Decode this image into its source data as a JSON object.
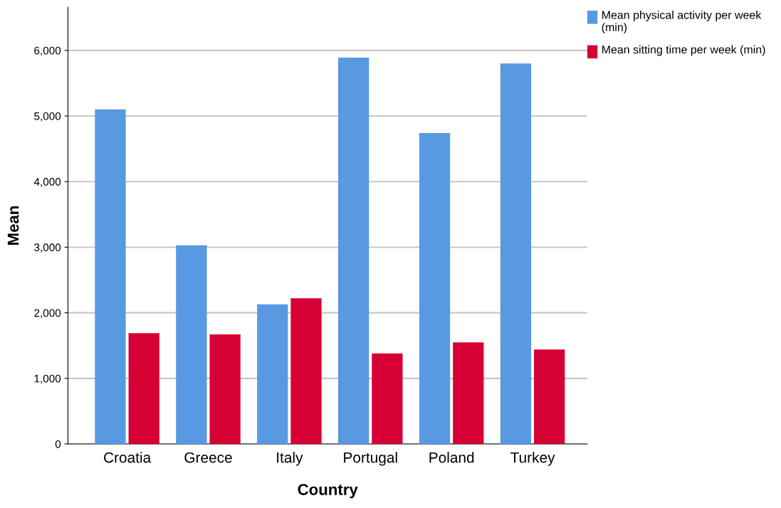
{
  "chart_data": {
    "type": "bar",
    "xlabel": "Country",
    "ylabel": "Mean",
    "categories": [
      "Croatia",
      "Greece",
      "Italy",
      "Portugal",
      "Poland",
      "Turkey"
    ],
    "series": [
      {
        "name": "Mean physical activity per week (min)",
        "color": "#5899e2",
        "values": [
          5100,
          3030,
          2130,
          5890,
          4740,
          5800
        ]
      },
      {
        "name": "Mean sitting time per week (min)",
        "color": "#d70034",
        "values": [
          1690,
          1670,
          2220,
          1380,
          1550,
          1440
        ]
      }
    ],
    "ylim": [
      0,
      6660
    ],
    "yticks": [
      {
        "value": 0,
        "label": "0"
      },
      {
        "value": 1000,
        "label": "1,000"
      },
      {
        "value": 2000,
        "label": "2,000"
      },
      {
        "value": 3000,
        "label": "3,000"
      },
      {
        "value": 4000,
        "label": "4,000"
      },
      {
        "value": 5000,
        "label": "5,000"
      },
      {
        "value": 6000,
        "label": "6,000"
      }
    ],
    "grid": "y",
    "legend": "top right"
  }
}
